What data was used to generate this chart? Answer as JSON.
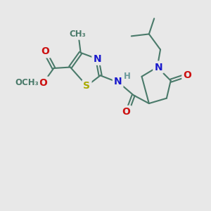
{
  "bg_color": "#e8e8e8",
  "bond_color": "#4a7a6a",
  "bond_width": 1.5,
  "atom_colors": {
    "N": "#1a1acc",
    "O": "#cc1111",
    "S": "#aaaa00",
    "H": "#6a9a9a",
    "C": "#4a7a6a"
  },
  "font_size_atom": 10,
  "font_size_small": 8.5
}
